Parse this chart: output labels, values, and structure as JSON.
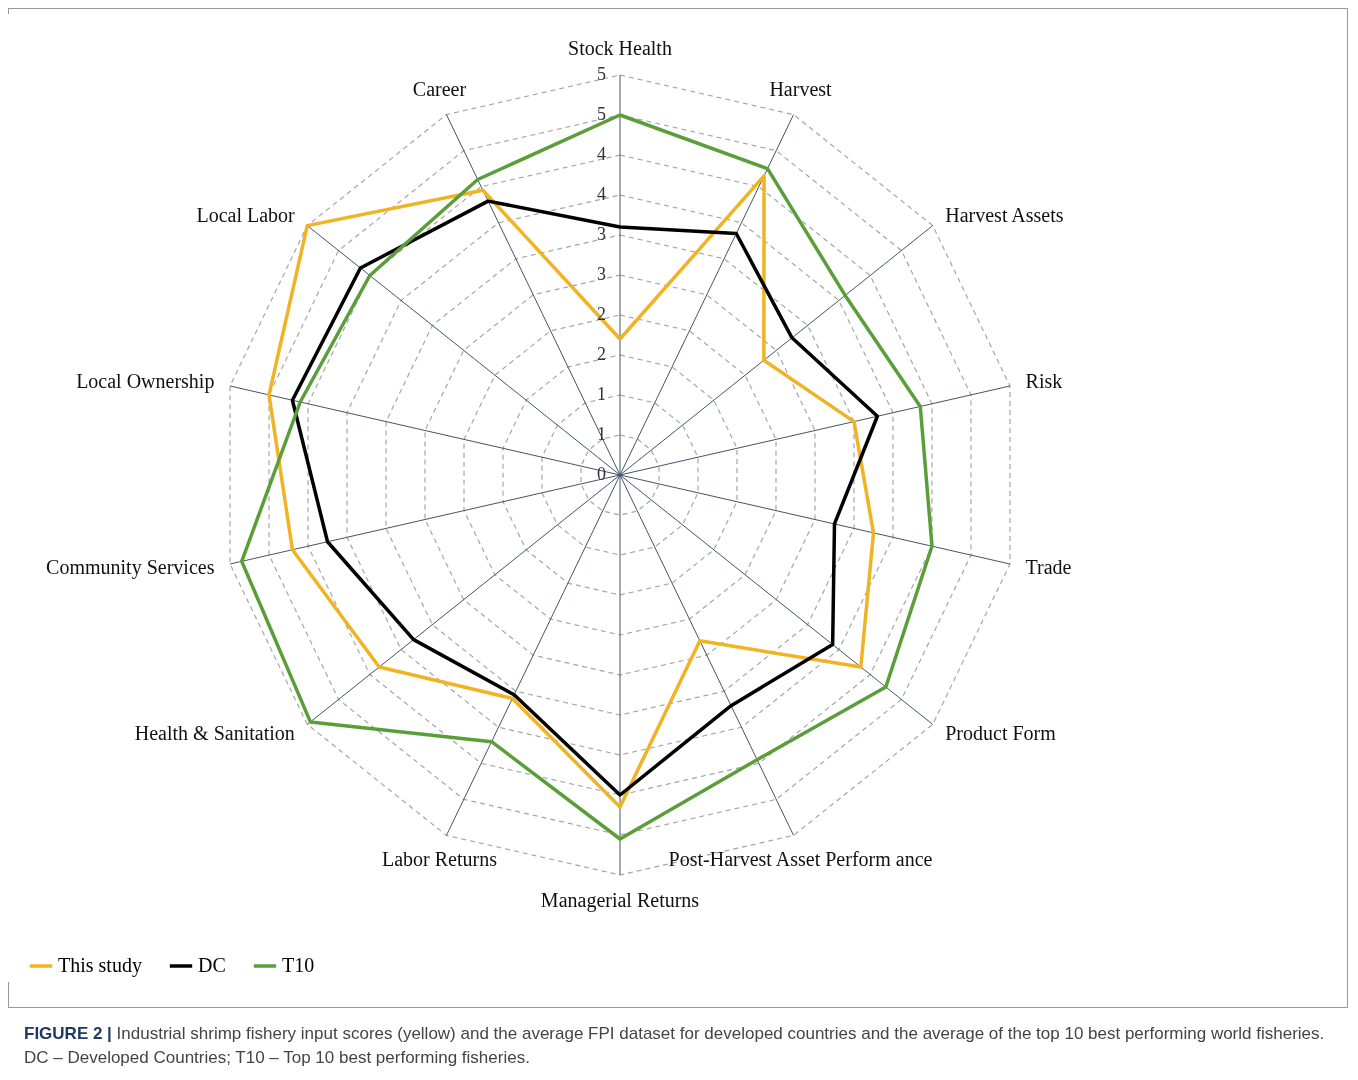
{
  "chart_data": {
    "type": "radar",
    "categories": [
      "Stock Health",
      "Harvest",
      "Harvest Assets",
      "Risk",
      "Trade",
      "Product Form",
      "Post-Harvest Asset Perform ance",
      "Managerial Returns",
      "Labor Returns",
      "Health & Sanitation",
      "Community Services",
      "Local Ownership",
      "Local Labor",
      "Career"
    ],
    "series": [
      {
        "name": "This study",
        "color": "#f0b323",
        "values": [
          1.7,
          4.15,
          2.3,
          3.0,
          3.25,
          3.85,
          2.3,
          4.15,
          3.1,
          3.85,
          4.2,
          4.5,
          5.0,
          3.95
        ]
      },
      {
        "name": "DC",
        "color": "#000000",
        "values": [
          3.1,
          3.35,
          2.75,
          3.3,
          2.75,
          3.4,
          3.2,
          4.0,
          3.05,
          3.3,
          3.75,
          4.2,
          4.15,
          3.8
        ]
      },
      {
        "name": "T10",
        "color": "#5a9e3a",
        "values": [
          4.5,
          4.25,
          3.6,
          3.85,
          4.0,
          4.25,
          3.95,
          4.55,
          3.7,
          4.95,
          4.85,
          4.1,
          4.0,
          4.1
        ]
      }
    ],
    "ylim": [
      0,
      5
    ],
    "yticks": [
      0,
      {
        "value": 0.5,
        "label": "1"
      },
      1,
      {
        "value": 1.5,
        "label": "2"
      },
      2,
      {
        "value": 2.5,
        "label": "3"
      },
      3,
      {
        "value": 3.5,
        "label": "4"
      },
      4,
      {
        "value": 4.5,
        "label": "5"
      },
      5
    ],
    "grid": true,
    "legend": "bottom",
    "annotations": [
      "FIGURE 2 | Industrial shrimp fishery input scores (yellow) and the average FPI dataset for developed countries and the average of the top 10 best performing world fisheries. DC – Developed Countries; T10 – Top 10 best performing fisheries."
    ]
  }
}
